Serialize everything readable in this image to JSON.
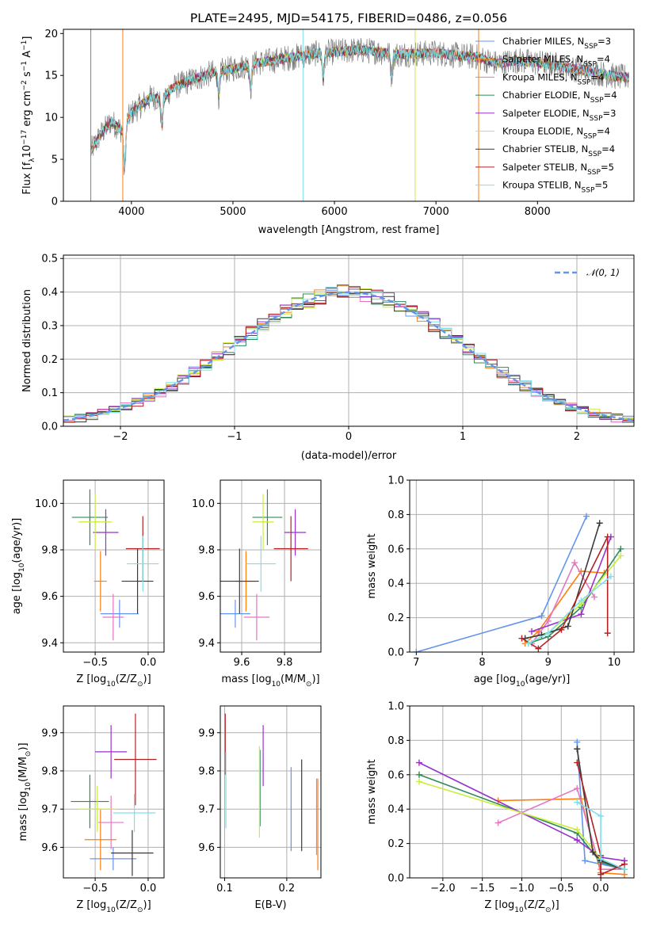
{
  "colors": [
    "#6495ed",
    "#ff7f0e",
    "#e377c2",
    "#2e8b57",
    "#9932cc",
    "#c9ee3c",
    "#3a3a3a",
    "#b22222",
    "#7ee0e8",
    "#808080"
  ],
  "chart_data": [
    {
      "id": "spectrum",
      "type": "line",
      "title": "PLATE=2495, MJD=54175, FIBERID=0486, z=0.056",
      "xlabel": "wavelength [Angstrom, rest frame]",
      "ylabel_parts": [
        "Flux [f",
        "λ",
        "10",
        "−17",
        " erg cm",
        "−2",
        " s",
        "−1",
        " A",
        "−1",
        "]"
      ],
      "xlim": [
        3330,
        8950
      ],
      "ylim": [
        0,
        20.5
      ],
      "xticks": [
        4000,
        5000,
        6000,
        7000,
        8000
      ],
      "yticks": [
        0,
        5,
        10,
        15,
        20
      ],
      "grid": false,
      "legend_position": "right",
      "legend": [
        {
          "base": "Chabrier MILES, N",
          "sub": "SSP",
          "tail": "=3"
        },
        {
          "base": "Salpeter MILES, N",
          "sub": "SSP",
          "tail": "=4"
        },
        {
          "base": "Kroupa MILES, N",
          "sub": "SSP",
          "tail": "=4"
        },
        {
          "base": "Chabrier ELODIE, N",
          "sub": "SSP",
          "tail": "=4"
        },
        {
          "base": "Salpeter ELODIE, N",
          "sub": "SSP",
          "tail": "=3"
        },
        {
          "base": "Kroupa ELODIE, N",
          "sub": "SSP",
          "tail": "=4"
        },
        {
          "base": "Chabrier STELIB, N",
          "sub": "SSP",
          "tail": "=4"
        },
        {
          "base": "Salpeter STELIB, N",
          "sub": "SSP",
          "tail": "=5"
        },
        {
          "base": "Kroupa STELIB, N",
          "sub": "SSP",
          "tail": "=5"
        }
      ],
      "continuum": {
        "x": [
          3600,
          3700,
          3800,
          3900,
          4000,
          4100,
          4200,
          4300,
          4400,
          4500,
          4600,
          4800,
          5000,
          5200,
          5400,
          5600,
          5800,
          6000,
          6200,
          6400,
          6600,
          6800,
          7000,
          7200,
          7400,
          7600,
          7800,
          8000,
          8200,
          8400,
          8600,
          8800
        ],
        "y": [
          6.0,
          8.0,
          9.5,
          8.5,
          10.5,
          11.5,
          12.5,
          12.0,
          13.5,
          14.0,
          14.5,
          15.3,
          15.8,
          16.4,
          16.8,
          17.2,
          17.6,
          17.8,
          18.0,
          17.9,
          17.5,
          17.6,
          17.7,
          17.4,
          17.2,
          16.4,
          16.8,
          16.5,
          16.2,
          15.7,
          15.3,
          14.8
        ]
      },
      "absorption_features": [
        {
          "x": 3933,
          "y": 3.5
        },
        {
          "x": 4300,
          "y": 9.0
        },
        {
          "x": 4861,
          "y": 12.5
        },
        {
          "x": 5175,
          "y": 13.5
        },
        {
          "x": 5890,
          "y": 14.5
        },
        {
          "x": 6563,
          "y": 15.0
        }
      ],
      "masked_x": [
        3600,
        3915,
        5690,
        6795,
        7420
      ]
    },
    {
      "id": "residuals",
      "type": "histogram",
      "xlabel": "(data-model)/error",
      "ylabel": "Normed distribution",
      "xlim": [
        -2.5,
        2.5
      ],
      "ylim": [
        0,
        0.51
      ],
      "xticks": [
        -2,
        -1,
        0,
        1,
        2
      ],
      "xticklabels": [
        "−2",
        "−1",
        "0",
        "1",
        "2"
      ],
      "yticks": [
        0.0,
        0.1,
        0.2,
        0.3,
        0.4,
        0.5
      ],
      "yticklabels": [
        "0.0",
        "0.1",
        "0.2",
        "0.3",
        "0.4",
        "0.5"
      ],
      "grid": true,
      "bin_width": 0.1,
      "bin_start": -2.5,
      "reference": {
        "label_math": "𝒩(0, 1)",
        "mean": 0,
        "sigma": 1,
        "style": "dashed"
      },
      "legend_position": "upper right"
    },
    {
      "id": "age_vs_Z",
      "type": "errorbar",
      "xlabel_parts": [
        "Z [log",
        "10",
        "(Z/Z",
        "⊙",
        ")]"
      ],
      "ylabel_parts": [
        "age  [log",
        "10",
        "(age/yr)]"
      ],
      "xlim": [
        -0.8,
        0.15
      ],
      "ylim": [
        9.36,
        10.1
      ],
      "xticks": [
        -0.5,
        0.0
      ],
      "xticklabels": [
        "−0.5",
        "0.0"
      ],
      "yticks": [
        9.4,
        9.6,
        9.8,
        10.0
      ],
      "yticklabels": [
        "9.4",
        "9.6",
        "9.8",
        "10.0"
      ],
      "grid": true,
      "points": [
        {
          "x": -0.27,
          "y": 9.525,
          "xerr": 0.18,
          "yerr": 0.06,
          "series": 0
        },
        {
          "x": -0.45,
          "y": 9.665,
          "xerr": 0.06,
          "yerr": 0.13,
          "series": 1
        },
        {
          "x": -0.33,
          "y": 9.51,
          "xerr": 0.1,
          "yerr": 0.1,
          "series": 2
        },
        {
          "x": -0.55,
          "y": 9.94,
          "xerr": 0.17,
          "yerr": 0.12,
          "series": 3
        },
        {
          "x": -0.4,
          "y": 9.875,
          "xerr": 0.12,
          "yerr": 0.1,
          "series": 4
        },
        {
          "x": -0.5,
          "y": 9.92,
          "xerr": 0.16,
          "yerr": 0.12,
          "series": 5
        },
        {
          "x": -0.1,
          "y": 9.665,
          "xerr": 0.15,
          "yerr": 0.14,
          "series": 6
        },
        {
          "x": -0.05,
          "y": 9.805,
          "xerr": 0.16,
          "yerr": 0.14,
          "series": 7
        },
        {
          "x": -0.05,
          "y": 9.74,
          "xerr": 0.15,
          "yerr": 0.12,
          "series": 8
        }
      ]
    },
    {
      "id": "age_vs_mass",
      "type": "errorbar",
      "xlabel_parts": [
        "mass [log",
        "10",
        "(M/M",
        "⊙",
        ")]"
      ],
      "ylabel_parts": [],
      "xlim": [
        9.5,
        9.97
      ],
      "ylim": [
        9.36,
        10.1
      ],
      "xticks": [
        9.6,
        9.8
      ],
      "xticklabels": [
        "9.6",
        "9.8"
      ],
      "yticks": [
        9.4,
        9.6,
        9.8,
        10.0
      ],
      "yticklabels": [
        "9.4",
        "9.6",
        "9.8",
        "10.0"
      ],
      "grid": true,
      "points": [
        {
          "x": 9.57,
          "y": 9.525,
          "xerr": 0.07,
          "yerr": 0.06,
          "series": 0
        },
        {
          "x": 9.62,
          "y": 9.665,
          "xerr": 0.05,
          "yerr": 0.13,
          "series": 1
        },
        {
          "x": 9.67,
          "y": 9.51,
          "xerr": 0.06,
          "yerr": 0.1,
          "series": 2
        },
        {
          "x": 9.72,
          "y": 9.94,
          "xerr": 0.07,
          "yerr": 0.12,
          "series": 3
        },
        {
          "x": 9.85,
          "y": 9.875,
          "xerr": 0.05,
          "yerr": 0.1,
          "series": 4
        },
        {
          "x": 9.7,
          "y": 9.92,
          "xerr": 0.05,
          "yerr": 0.12,
          "series": 5
        },
        {
          "x": 9.59,
          "y": 9.665,
          "xerr": 0.09,
          "yerr": 0.14,
          "series": 6
        },
        {
          "x": 9.83,
          "y": 9.805,
          "xerr": 0.08,
          "yerr": 0.14,
          "series": 7
        },
        {
          "x": 9.69,
          "y": 9.74,
          "xerr": 0.07,
          "yerr": 0.12,
          "series": 8
        }
      ]
    },
    {
      "id": "weight_vs_age",
      "type": "line",
      "xlabel_parts": [
        "age  [log",
        "10",
        "(age/yr)]"
      ],
      "ylabel": "mass weight",
      "xlim": [
        6.9,
        10.3
      ],
      "ylim": [
        0,
        1.0
      ],
      "xticks": [
        7,
        8,
        9,
        10
      ],
      "xticklabels": [
        "7",
        "8",
        "9",
        "10"
      ],
      "yticks": [
        0,
        0.2,
        0.4,
        0.6,
        0.8,
        1.0
      ],
      "yticklabels": [
        "0.0",
        "0.2",
        "0.4",
        "0.6",
        "0.8",
        "1.0"
      ],
      "grid": true,
      "series": [
        {
          "index": 0,
          "x": [
            7.0,
            8.9,
            9.58
          ],
          "y": [
            0.0,
            0.21,
            0.79
          ]
        },
        {
          "index": 1,
          "x": [
            8.65,
            8.85,
            9.5,
            9.85
          ],
          "y": [
            0.05,
            0.12,
            0.47,
            0.46
          ]
        },
        {
          "index": 2,
          "x": [
            8.75,
            9.0,
            9.4,
            9.7
          ],
          "y": [
            0.05,
            0.18,
            0.52,
            0.32
          ]
        },
        {
          "index": 3,
          "x": [
            8.7,
            9.0,
            9.5,
            10.1
          ],
          "y": [
            0.05,
            0.09,
            0.26,
            0.6
          ]
        },
        {
          "index": 4,
          "x": [
            8.75,
            9.5,
            9.95
          ],
          "y": [
            0.12,
            0.22,
            0.67
          ]
        },
        {
          "index": 5,
          "x": [
            8.7,
            9.0,
            9.5,
            10.1
          ],
          "y": [
            0.05,
            0.11,
            0.28,
            0.56
          ]
        },
        {
          "index": 6,
          "x": [
            8.65,
            8.9,
            9.3,
            9.78
          ],
          "y": [
            0.08,
            0.1,
            0.15,
            0.75
          ]
        },
        {
          "index": 7,
          "x": [
            8.6,
            8.85,
            9.2,
            9.9,
            9.9
          ],
          "y": [
            0.08,
            0.02,
            0.13,
            0.67,
            0.11
          ]
        },
        {
          "index": 8,
          "x": [
            8.7,
            9.0,
            9.5,
            9.95
          ],
          "y": [
            0.05,
            0.11,
            0.3,
            0.44
          ]
        }
      ]
    },
    {
      "id": "mass_vs_Z",
      "type": "errorbar",
      "xlabel_parts": [
        "Z [log",
        "10",
        "(Z/Z",
        "⊙",
        ")]"
      ],
      "ylabel_parts": [
        "mass [log",
        "10",
        "(M/M",
        "⊙",
        ")]"
      ],
      "xlim": [
        -0.8,
        0.15
      ],
      "ylim": [
        9.52,
        9.97
      ],
      "xticks": [
        -0.5,
        0.0
      ],
      "xticklabels": [
        "−0.5",
        "0.0"
      ],
      "yticks": [
        9.6,
        9.7,
        9.8,
        9.9
      ],
      "yticklabels": [
        "9.6",
        "9.7",
        "9.8",
        "9.9"
      ],
      "grid": true,
      "points": [
        {
          "x": -0.33,
          "y": 9.57,
          "xerr": 0.22,
          "yerr": 0.03,
          "series": 0
        },
        {
          "x": -0.45,
          "y": 9.62,
          "xerr": 0.15,
          "yerr": 0.08,
          "series": 1
        },
        {
          "x": -0.35,
          "y": 9.665,
          "xerr": 0.12,
          "yerr": 0.07,
          "series": 2
        },
        {
          "x": -0.55,
          "y": 9.72,
          "xerr": 0.18,
          "yerr": 0.07,
          "series": 3
        },
        {
          "x": -0.35,
          "y": 9.85,
          "xerr": 0.15,
          "yerr": 0.07,
          "series": 4
        },
        {
          "x": -0.48,
          "y": 9.7,
          "xerr": 0.18,
          "yerr": 0.06,
          "series": 5
        },
        {
          "x": -0.15,
          "y": 9.585,
          "xerr": 0.2,
          "yerr": 0.06,
          "series": 6
        },
        {
          "x": -0.12,
          "y": 9.83,
          "xerr": 0.2,
          "yerr": 0.12,
          "series": 7
        },
        {
          "x": -0.13,
          "y": 9.69,
          "xerr": 0.2,
          "yerr": 0.05,
          "series": 8
        }
      ]
    },
    {
      "id": "mass_vs_EBV",
      "type": "errorbar",
      "xlabel": "E(B-V)",
      "ylabel_parts": [],
      "xlim": [
        0.093,
        0.255
      ],
      "ylim": [
        9.52,
        9.97
      ],
      "xticks": [
        0.1,
        0.2
      ],
      "xticklabels": [
        "0.1",
        "0.2"
      ],
      "yticks": [
        9.6,
        9.7,
        9.8,
        9.9
      ],
      "yticklabels": [
        "9.6",
        "9.7",
        "9.8",
        "9.9"
      ],
      "grid": true,
      "points": [
        {
          "x": 0.207,
          "y": 9.7,
          "xerr": 0,
          "yerr": 0.11,
          "series": 0
        },
        {
          "x": 0.25,
          "y": 9.66,
          "xerr": 0,
          "yerr": 0.12,
          "series": 1
        },
        {
          "x": 0.248,
          "y": 9.68,
          "xerr": 0,
          "yerr": 0.1,
          "series": 2
        },
        {
          "x": 0.157,
          "y": 9.755,
          "xerr": 0,
          "yerr": 0.1,
          "series": 3
        },
        {
          "x": 0.162,
          "y": 9.84,
          "xerr": 0,
          "yerr": 0.08,
          "series": 4
        },
        {
          "x": 0.156,
          "y": 9.745,
          "xerr": 0,
          "yerr": 0.12,
          "series": 5
        },
        {
          "x": 0.224,
          "y": 9.71,
          "xerr": 0,
          "yerr": 0.12,
          "series": 6
        },
        {
          "x": 0.101,
          "y": 9.87,
          "xerr": 0,
          "yerr": 0.08,
          "series": 7
        },
        {
          "x": 0.102,
          "y": 9.75,
          "xerr": 0,
          "yerr": 0.1,
          "series": 8
        }
      ]
    },
    {
      "id": "weight_vs_Z",
      "type": "line",
      "xlabel_parts": [
        "Z [log",
        "10",
        "(Z/Z",
        "⊙",
        ")]"
      ],
      "ylabel": "mass weight",
      "xlim": [
        -2.42,
        0.42
      ],
      "ylim": [
        0,
        1.0
      ],
      "xticks": [
        -2.0,
        -1.5,
        -1.0,
        -0.5,
        0.0
      ],
      "xticklabels": [
        "−2.0",
        "−1.5",
        "−1.0",
        "−0.5",
        "0.0"
      ],
      "yticks": [
        0,
        0.2,
        0.4,
        0.6,
        0.8,
        1.0
      ],
      "yticklabels": [
        "0.0",
        "0.2",
        "0.4",
        "0.6",
        "0.8",
        "1.0"
      ],
      "grid": true,
      "series": [
        {
          "index": 0,
          "x": [
            -0.3,
            -0.2,
            0.0,
            0.3
          ],
          "y": [
            0.79,
            0.1,
            0.08,
            0.05
          ]
        },
        {
          "index": 1,
          "x": [
            -1.3,
            -0.25,
            0.0,
            0.3
          ],
          "y": [
            0.45,
            0.46,
            0.03,
            0.02
          ]
        },
        {
          "index": 2,
          "x": [
            -1.3,
            -0.3,
            0.0,
            0.3
          ],
          "y": [
            0.32,
            0.52,
            0.05,
            0.05
          ]
        },
        {
          "index": 3,
          "x": [
            -2.3,
            -0.3,
            0.0,
            0.3
          ],
          "y": [
            0.6,
            0.26,
            0.09,
            0.05
          ]
        },
        {
          "index": 4,
          "x": [
            -2.3,
            -0.3,
            0.0,
            0.3
          ],
          "y": [
            0.67,
            0.22,
            0.12,
            0.1
          ]
        },
        {
          "index": 5,
          "x": [
            -2.3,
            -0.3,
            0.0,
            0.3
          ],
          "y": [
            0.56,
            0.28,
            0.11,
            0.05
          ]
        },
        {
          "index": 6,
          "x": [
            -0.3,
            -0.1,
            0.0,
            0.3
          ],
          "y": [
            0.75,
            0.15,
            0.1,
            0.05
          ]
        },
        {
          "index": 7,
          "x": [
            -0.3,
            0.0,
            0.0,
            0.3
          ],
          "y": [
            0.67,
            0.13,
            0.02,
            0.08
          ]
        },
        {
          "index": 8,
          "x": [
            -0.3,
            0.0,
            0.0,
            0.3
          ],
          "y": [
            0.44,
            0.36,
            0.11,
            0.05
          ]
        }
      ]
    }
  ]
}
